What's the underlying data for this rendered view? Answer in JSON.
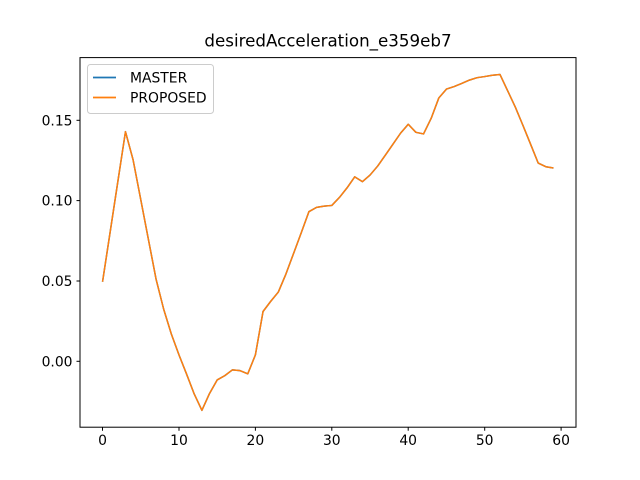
{
  "figure": {
    "title": "desiredAcceleration_e359eb7"
  },
  "legend": {
    "entries": [
      {
        "label": "MASTER",
        "color": "#1f77b4"
      },
      {
        "label": "PROPOSED",
        "color": "#ff7f0e"
      }
    ]
  },
  "chart_data": {
    "type": "line",
    "title": "desiredAcceleration_e359eb7",
    "xlabel": "",
    "ylabel": "",
    "xlim": [
      -2.95,
      61.95
    ],
    "ylim": [
      -0.041,
      0.189
    ],
    "x_ticks": [
      0,
      10,
      20,
      30,
      40,
      50,
      60
    ],
    "x_tick_labels": [
      "0",
      "10",
      "20",
      "30",
      "40",
      "50",
      "60"
    ],
    "y_ticks": [
      0.0,
      0.05,
      0.1,
      0.15
    ],
    "y_tick_labels": [
      "0.00",
      "0.05",
      "0.10",
      "0.15"
    ],
    "grid": false,
    "legend_position": "upper left",
    "x": [
      0,
      1,
      2,
      3,
      4,
      5,
      6,
      7,
      8,
      9,
      10,
      11,
      12,
      13,
      14,
      15,
      16,
      17,
      18,
      19,
      20,
      21,
      22,
      23,
      24,
      25,
      26,
      27,
      28,
      29,
      30,
      31,
      32,
      33,
      34,
      35,
      36,
      37,
      38,
      39,
      40,
      41,
      42,
      43,
      44,
      45,
      46,
      47,
      48,
      49,
      50,
      51,
      52,
      53,
      54,
      55,
      56,
      57,
      58,
      59
    ],
    "series": [
      {
        "name": "MASTER",
        "color": "#1f77b4",
        "linewidth": 1.5,
        "values": [
          0.0495,
          0.0806,
          0.1118,
          0.1429,
          0.1253,
          0.1006,
          0.0759,
          0.0512,
          0.0324,
          0.017,
          0.004,
          -0.008,
          -0.0204,
          -0.0305,
          -0.02,
          -0.0116,
          -0.0089,
          -0.0053,
          -0.0058,
          -0.0078,
          0.004,
          0.031,
          0.0373,
          0.0431,
          0.0544,
          0.0672,
          0.08,
          0.0931,
          0.0958,
          0.0966,
          0.097,
          0.102,
          0.108,
          0.1148,
          0.1118,
          0.1159,
          0.1215,
          0.1283,
          0.1351,
          0.142,
          0.1475,
          0.1425,
          0.1415,
          0.1512,
          0.1639,
          0.1694,
          0.171,
          0.1729,
          0.175,
          0.1765,
          0.1772,
          0.178,
          0.1785,
          0.1684,
          0.1583,
          0.1469,
          0.1352,
          0.1234,
          0.1211,
          0.1203
        ]
      },
      {
        "name": "PROPOSED",
        "color": "#ff7f0e",
        "linewidth": 1.5,
        "values": [
          0.0495,
          0.0806,
          0.1118,
          0.1429,
          0.1253,
          0.1006,
          0.0759,
          0.0512,
          0.0324,
          0.017,
          0.004,
          -0.008,
          -0.0204,
          -0.0305,
          -0.02,
          -0.0116,
          -0.0089,
          -0.0053,
          -0.0058,
          -0.0078,
          0.004,
          0.031,
          0.0373,
          0.0431,
          0.0544,
          0.0672,
          0.08,
          0.0931,
          0.0958,
          0.0966,
          0.097,
          0.102,
          0.108,
          0.1148,
          0.1118,
          0.1159,
          0.1215,
          0.1283,
          0.1351,
          0.142,
          0.1475,
          0.1425,
          0.1415,
          0.1512,
          0.1639,
          0.1694,
          0.171,
          0.1729,
          0.175,
          0.1765,
          0.1772,
          0.178,
          0.1785,
          0.1684,
          0.1583,
          0.1469,
          0.1352,
          0.1234,
          0.1211,
          0.1203
        ]
      }
    ]
  }
}
